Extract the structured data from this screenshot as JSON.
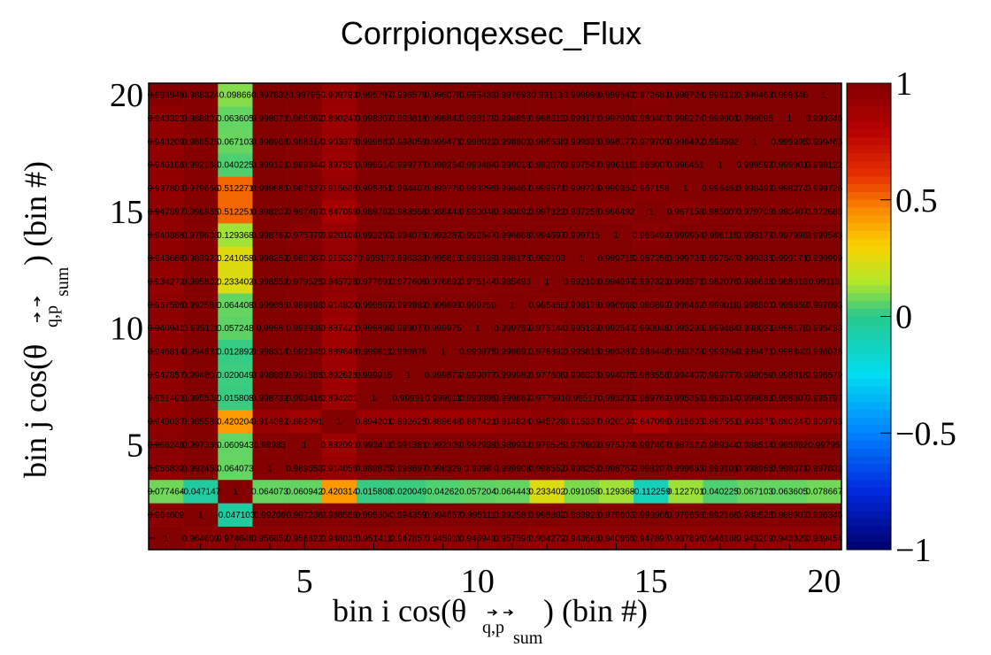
{
  "chart_data": {
    "type": "heatmap",
    "title": "Corrpionqexsec_Flux",
    "xlabel": {
      "main": "bin i cos(θ",
      "subscript": "q,p",
      "subsub": "sum",
      "suffix": ") (bin #)"
    },
    "ylabel": {
      "main": "bin j cos(θ",
      "subscript": "q,p",
      "subsub": "sum",
      "suffix": ") (bin #)"
    },
    "xlim": [
      0.5,
      20.5
    ],
    "ylim": [
      0.5,
      20.5
    ],
    "x_ticks": [
      5,
      10,
      15,
      20
    ],
    "y_ticks": [
      5,
      10,
      15,
      20
    ],
    "zlim": [
      -1,
      1
    ],
    "z_ticks": [
      {
        "value": 1,
        "label": "1"
      },
      {
        "value": 0.5,
        "label": "0.5"
      },
      {
        "value": 0,
        "label": "0"
      },
      {
        "value": -0.5,
        "label": "−0.5"
      },
      {
        "value": -1,
        "label": "−1"
      }
    ],
    "colormap": "rainbow (ROOT palette 55)",
    "grid": false,
    "rows": [
      {
        "y": 1,
        "values": [
          1,
          0.964609,
          0.974648,
          0.956852,
          0.956822,
          0.948035,
          0.951411,
          0.947857,
          0.945911,
          0.946941,
          0.957596,
          0.934272,
          0.943686,
          0.940868,
          0.947897,
          0.937896,
          0.946186,
          0.943209,
          0.943323,
          0.939454
        ]
      },
      {
        "y": 2,
        "values": [
          0.964609,
          1,
          -0.047103,
          0.99209,
          0.997236,
          0.988559,
          0.995604,
          0.994359,
          0.994667,
          0.995111,
          0.992581,
          0.995802,
          0.983923,
          0.979603,
          0.996965,
          0.979656,
          0.992168,
          0.988525,
          0.988907,
          0.996346
        ]
      },
      {
        "y": 3,
        "values": [
          0.077464,
          -0.047147,
          1,
          0.0640725,
          0.0609423,
          0.420314,
          0.015808,
          0.020049,
          0.04262,
          0.057204,
          0.064443,
          0.233402,
          0.091058,
          0.129368,
          -0.112259,
          0.122701,
          0.040225,
          0.067103,
          0.063605,
          0.0786667
        ]
      },
      {
        "y": 4,
        "values": [
          0.956832,
          0.992453,
          0.0640725,
          1,
          0.989653,
          0.914055,
          0.989875,
          0.998697,
          0.998329,
          0.9998,
          0.999908,
          0.998552,
          0.998252,
          0.998767,
          0.998207,
          0.999685,
          0.999101,
          0.998968,
          0.998071,
          0.997832
        ]
      },
      {
        "y": 5,
        "values": [
          0.966248,
          0.997365,
          0.060943,
          0.98983,
          1,
          0.882091,
          0.993411,
          0.991381,
          0.992309,
          0.992939,
          0.989932,
          0.979525,
          0.979802,
          0.975379,
          0.997467,
          0.987527,
          0.989344,
          0.988514,
          0.985862,
          0.99795
        ]
      },
      {
        "y": 6,
        "values": [
          0.948037,
          0.985583,
          0.420204,
          0.914082,
          0.882091,
          1,
          0.894201,
          0.892625,
          0.889648,
          0.887421,
          0.914824,
          0.945728,
          0.915337,
          0.920104,
          0.847099,
          0.915605,
          0.897551,
          0.903375,
          0.890247,
          0.909793
        ]
      },
      {
        "y": 7,
        "values": [
          0.951401,
          0.995532,
          0.015808,
          0.998732,
          0.993416,
          0.894201,
          1,
          0.99991,
          0.999911,
          0.999898,
          0.999867,
          0.977691,
          0.99517,
          0.993293,
          0.989762,
          0.995351,
          0.999514,
          0.999883,
          0.998807,
          0.995797
        ]
      },
      {
        "y": 8,
        "values": [
          0.947857,
          0.994807,
          0.020049,
          0.998689,
          0.991385,
          0.892625,
          0.999915,
          1,
          0.999877,
          0.999077,
          0.999982,
          0.977606,
          0.996333,
          0.994075,
          0.988556,
          0.994407,
          0.999777,
          0.998059,
          0.998818,
          0.996579
        ]
      },
      {
        "y": 9,
        "values": [
          0.946814,
          0.994631,
          0.012892,
          0.998314,
          0.992345,
          0.889648,
          0.999911,
          0.999876,
          1,
          0.999975,
          0.999891,
          0.976892,
          0.995815,
          0.993287,
          0.988448,
          0.993778,
          0.999264,
          0.999471,
          0.998843,
          0.996078
        ]
      },
      {
        "y": 10,
        "values": [
          0.946941,
          0.995111,
          0.057248,
          0.9998,
          0.992939,
          0.887421,
          0.999898,
          0.999077,
          0.999975,
          1,
          0.999759,
          0.975144,
          0.995139,
          0.992547,
          0.990048,
          0.993295,
          0.999484,
          0.998022,
          0.998178,
          0.995433
        ]
      },
      {
        "y": 11,
        "values": [
          0.957596,
          0.992581,
          0.064408,
          0.999085,
          0.989898,
          0.914824,
          0.999867,
          0.999982,
          0.999891,
          0.999759,
          1,
          0.985455,
          0.998178,
          0.996668,
          0.980892,
          0.996462,
          0.999018,
          0.998801,
          0.998859,
          0.997693
        ]
      },
      {
        "y": 12,
        "values": [
          0.934272,
          0.995802,
          0.233402,
          0.998552,
          0.979525,
          0.945728,
          0.977691,
          0.977606,
          0.976892,
          0.975144,
          0.985493,
          1,
          0.992103,
          0.994697,
          0.997322,
          0.993571,
          0.982076,
          0.986638,
          0.988613,
          0.99113
        ]
      },
      {
        "y": 13,
        "values": [
          0.943686,
          0.983923,
          0.241058,
          0.998252,
          0.980087,
          0.915337,
          0.99517,
          0.996333,
          0.995815,
          0.995139,
          0.998178,
          0.992103,
          1,
          0.999715,
          0.987258,
          0.999726,
          0.997547,
          0.999335,
          0.999171,
          0.999999
        ]
      },
      {
        "y": 14,
        "values": [
          0.940868,
          0.979603,
          0.129368,
          0.998767,
          0.975379,
          0.920104,
          0.993293,
          0.994075,
          0.993287,
          0.992547,
          0.996668,
          0.994697,
          0.999715,
          1,
          0.966492,
          0.999954,
          0.996118,
          0.998177,
          0.997996,
          0.999543
        ]
      },
      {
        "y": 15,
        "values": [
          0.947897,
          0.996965,
          0.512251,
          0.998207,
          0.997467,
          0.847099,
          0.989762,
          0.988556,
          0.988448,
          0.990048,
          0.980892,
          0.997322,
          0.987258,
          0.966492,
          1,
          0.967158,
          0.985007,
          0.979709,
          0.980407,
          0.972683
        ]
      },
      {
        "y": 16,
        "values": [
          0.937803,
          0.979656,
          0.512271,
          0.999685,
          0.987527,
          0.915605,
          0.995351,
          0.994407,
          0.993778,
          0.993295,
          0.996462,
          0.993571,
          0.999726,
          0.999954,
          0.967158,
          1,
          0.996451,
          0.998492,
          0.998274,
          0.999726
        ]
      },
      {
        "y": 17,
        "values": [
          0.946186,
          0.992168,
          0.040225,
          0.999101,
          0.989344,
          0.897551,
          0.999514,
          0.999777,
          0.999264,
          0.999484,
          0.999018,
          0.982076,
          0.997547,
          0.996118,
          0.985007,
          0.996451,
          1,
          0.999592,
          0.999901,
          0.998122
        ]
      },
      {
        "y": 18,
        "values": [
          0.943209,
          0.988525,
          0.067103,
          0.998968,
          0.988514,
          0.903375,
          0.999883,
          0.998059,
          0.999471,
          0.998022,
          0.998801,
          0.986638,
          0.999335,
          0.998177,
          0.979709,
          0.998492,
          0.999592,
          1,
          0.999995,
          0.999463
        ]
      },
      {
        "y": 19,
        "values": [
          0.943323,
          0.988907,
          0.063605,
          0.998071,
          0.985862,
          0.890247,
          0.998807,
          0.998818,
          0.998843,
          0.998178,
          0.998859,
          0.988613,
          0.999171,
          0.997996,
          0.980407,
          0.998274,
          0.999901,
          0.999995,
          1,
          0.999346
        ]
      },
      {
        "y": 20,
        "values": [
          0.993946,
          0.988324,
          0.09866,
          0.997832,
          0.99795,
          0.909793,
          0.995797,
          0.996579,
          0.996078,
          0.995433,
          0.997693,
          0.99113,
          0.999999,
          0.999543,
          0.972683,
          0.999726,
          0.998122,
          0.999463,
          0.999346,
          1
        ]
      }
    ]
  }
}
